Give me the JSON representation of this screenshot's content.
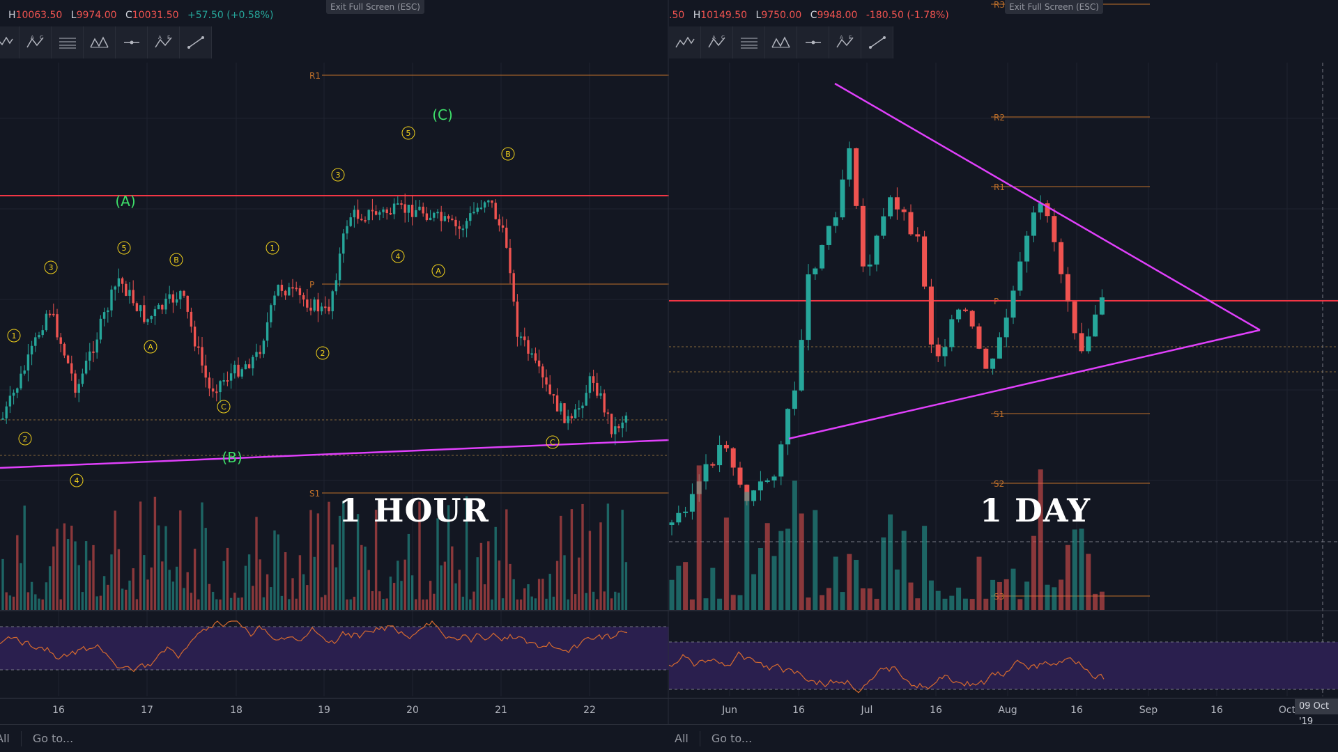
{
  "left": {
    "ohlc": {
      "h_key": "H",
      "h": "10063.50",
      "l_key": "L",
      "l": "9974.00",
      "c_key": "C",
      "c": "10031.50",
      "change": "+57.50 (+0.58%)"
    },
    "exit_label": "Exit Full Screen (ESC)",
    "timeframe_label": "1 HOUR",
    "pivots": [
      "R1",
      "P",
      "S1"
    ],
    "wave_big": [
      "(A)",
      "(B)",
      "(C)"
    ],
    "wave_small": [
      "1",
      "2",
      "3",
      "4",
      "5",
      "A",
      "B",
      "C",
      "1",
      "2",
      "3",
      "4",
      "5",
      "A",
      "B",
      "C"
    ],
    "x_ticks": [
      "16",
      "17",
      "18",
      "19",
      "20",
      "21",
      "22"
    ],
    "bottom": {
      "all": "All",
      "goto": "Go to..."
    }
  },
  "right": {
    "ohlc": {
      "prefix": ".50",
      "h_key": "H",
      "h": "10149.50",
      "l_key": "L",
      "l": "9750.00",
      "c_key": "C",
      "c": "9948.00",
      "change": "-180.50 (-1.78%)"
    },
    "exit_label": "Exit Full Screen (ESC)",
    "timeframe_label": "1 DAY",
    "pivots": [
      "R3",
      "R2",
      "R1",
      "P",
      "S1",
      "S2",
      "S3"
    ],
    "x_ticks": [
      "Jun",
      "16",
      "Jul",
      "16",
      "Aug",
      "16",
      "Sep",
      "16",
      "Oct"
    ],
    "date_badge": "09 Oct '19",
    "bottom": {
      "all": "All",
      "goto": "Go to..."
    }
  },
  "toolbar_icons": [
    "elliott-impulse-icon",
    "elliott-correction-icon",
    "fib-lines-icon",
    "pattern-icon",
    "horizontal-ray-icon",
    "abcd-icon",
    "trendline-icon"
  ],
  "colors": {
    "up": "#26a69a",
    "down": "#ef5350",
    "trend": "#e040fb",
    "resistance": "#f23645",
    "pivot": "#c1712a",
    "wave_green": "#3ee06a",
    "wave_yellow": "#f2d21b",
    "rsi_band": "#2a1f4e",
    "rsi_line": "#d66a2e"
  }
}
